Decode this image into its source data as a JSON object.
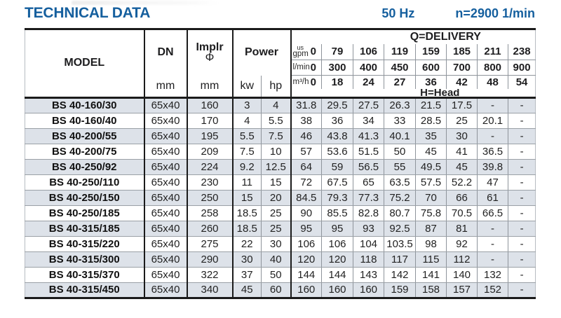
{
  "page": {
    "title": "TECHNICAL DATA",
    "frequency": "50 Hz",
    "speed": "n=2900 1/min"
  },
  "colors": {
    "accent_blue": "#155f9e",
    "row_stripe": "#dde2e9",
    "border_dark": "#1b1b1b",
    "border_light": "#8e949b"
  },
  "table": {
    "headers": {
      "model": "MODEL",
      "dn": "DN",
      "implr_line1": "Implr",
      "implr_line2": "Φ",
      "power": "Power",
      "dn_unit": "mm",
      "implr_unit": "mm",
      "kw": "kw",
      "hp": "hp"
    },
    "delivery": {
      "title": "Q=DELIVERY",
      "head_label": "H=Head",
      "unit_rows": [
        {
          "small": "us",
          "unit": "gpm",
          "zero": "0",
          "values": [
            "79",
            "106",
            "119",
            "159",
            "185",
            "211",
            "238"
          ]
        },
        {
          "unit": "l/min",
          "zero": "0",
          "values": [
            "300",
            "400",
            "450",
            "600",
            "700",
            "800",
            "900"
          ]
        },
        {
          "unit": "m³/h",
          "zero": "0",
          "values": [
            "18",
            "24",
            "27",
            "36",
            "42",
            "48",
            "54"
          ]
        }
      ]
    },
    "rows": [
      {
        "model": "BS 40-160/30",
        "dn": "65x40",
        "implr": "160",
        "kw": "3",
        "hp": "4",
        "heads": [
          "31.8",
          "29.5",
          "27.5",
          "26.3",
          "21.5",
          "17.5",
          "-",
          "-"
        ]
      },
      {
        "model": "BS 40-160/40",
        "dn": "65x40",
        "implr": "170",
        "kw": "4",
        "hp": "5.5",
        "heads": [
          "38",
          "36",
          "34",
          "33",
          "28.5",
          "25",
          "20.1",
          "-"
        ]
      },
      {
        "model": "BS 40-200/55",
        "dn": "65x40",
        "implr": "195",
        "kw": "5.5",
        "hp": "7.5",
        "heads": [
          "46",
          "43.8",
          "41.3",
          "40.1",
          "35",
          "30",
          "-",
          "-"
        ]
      },
      {
        "model": "BS 40-200/75",
        "dn": "65x40",
        "implr": "209",
        "kw": "7.5",
        "hp": "10",
        "heads": [
          "57",
          "53.6",
          "51.5",
          "50",
          "45",
          "41",
          "36.5",
          "-"
        ]
      },
      {
        "model": "BS 40-250/92",
        "dn": "65x40",
        "implr": "224",
        "kw": "9.2",
        "hp": "12.5",
        "heads": [
          "64",
          "59",
          "56.5",
          "55",
          "49.5",
          "45",
          "39.8",
          "-"
        ]
      },
      {
        "model": "BS 40-250/110",
        "dn": "65x40",
        "implr": "230",
        "kw": "11",
        "hp": "15",
        "heads": [
          "72",
          "67.5",
          "65",
          "63.5",
          "57.5",
          "52.2",
          "47",
          "-"
        ]
      },
      {
        "model": "BS 40-250/150",
        "dn": "65x40",
        "implr": "250",
        "kw": "15",
        "hp": "20",
        "heads": [
          "84.5",
          "79.3",
          "77.3",
          "75.2",
          "70",
          "66",
          "61",
          "-"
        ]
      },
      {
        "model": "BS 40-250/185",
        "dn": "65x40",
        "implr": "258",
        "kw": "18.5",
        "hp": "25",
        "heads": [
          "90",
          "85.5",
          "82.8",
          "80.7",
          "75.8",
          "70.5",
          "66.5",
          "-"
        ]
      },
      {
        "model": "BS 40-315/185",
        "dn": "65x40",
        "implr": "260",
        "kw": "18.5",
        "hp": "25",
        "heads": [
          "95",
          "95",
          "93",
          "92.5",
          "87",
          "81",
          "-",
          "-"
        ]
      },
      {
        "model": "BS 40-315/220",
        "dn": "65x40",
        "implr": "275",
        "kw": "22",
        "hp": "30",
        "heads": [
          "106",
          "106",
          "104",
          "103.5",
          "98",
          "92",
          "-",
          "-"
        ]
      },
      {
        "model": "BS 40-315/300",
        "dn": "65x40",
        "implr": "290",
        "kw": "30",
        "hp": "40",
        "heads": [
          "120",
          "120",
          "118",
          "117",
          "115",
          "112",
          "-",
          "-"
        ]
      },
      {
        "model": "BS 40-315/370",
        "dn": "65x40",
        "implr": "322",
        "kw": "37",
        "hp": "50",
        "heads": [
          "144",
          "144",
          "143",
          "142",
          "141",
          "140",
          "132",
          "-"
        ]
      },
      {
        "model": "BS 40-315/450",
        "dn": "65x40",
        "implr": "340",
        "kw": "45",
        "hp": "60",
        "heads": [
          "160",
          "160",
          "160",
          "159",
          "158",
          "157",
          "152",
          "-"
        ]
      }
    ]
  }
}
